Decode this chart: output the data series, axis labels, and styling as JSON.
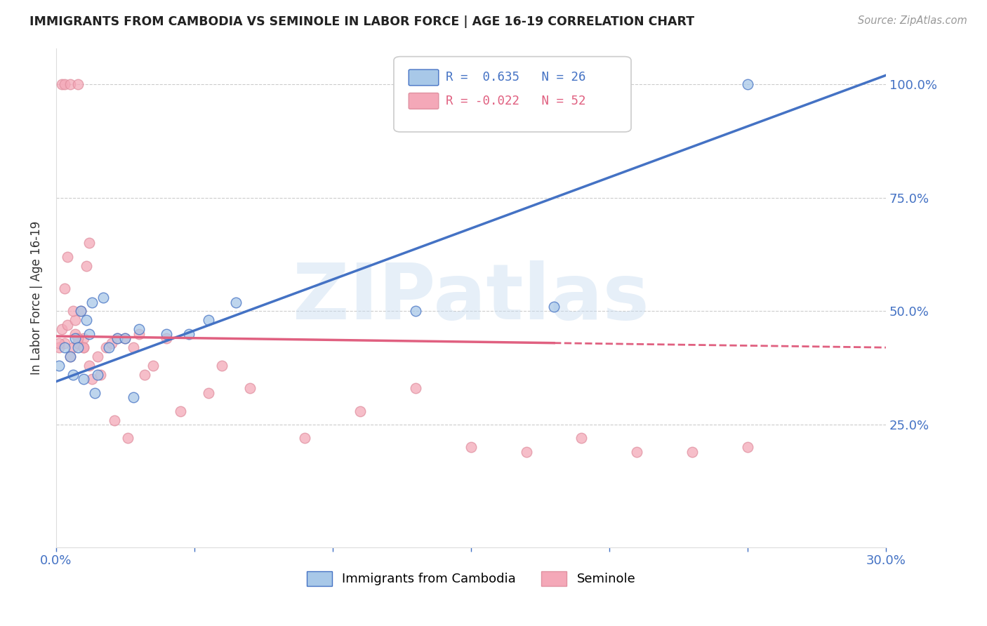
{
  "title": "IMMIGRANTS FROM CAMBODIA VS SEMINOLE IN LABOR FORCE | AGE 16-19 CORRELATION CHART",
  "source_text": "Source: ZipAtlas.com",
  "ylabel": "In Labor Force | Age 16-19",
  "xlim": [
    0.0,
    0.3
  ],
  "ylim": [
    -0.02,
    1.08
  ],
  "yticks": [
    0.0,
    0.25,
    0.5,
    0.75,
    1.0
  ],
  "ytick_labels": [
    "",
    "25.0%",
    "50.0%",
    "75.0%",
    "100.0%"
  ],
  "xticks": [
    0.0,
    0.05,
    0.1,
    0.15,
    0.2,
    0.25,
    0.3
  ],
  "xtick_labels": [
    "0.0%",
    "",
    "",
    "",
    "",
    "",
    "30.0%"
  ],
  "watermark": "ZIPatlas",
  "legend_r_cambodia": "0.635",
  "legend_n_cambodia": "26",
  "legend_r_seminole": "-0.022",
  "legend_n_seminole": "52",
  "color_cambodia": "#A8C8E8",
  "color_seminole": "#F4A8B8",
  "trendline_cambodia_color": "#4472C4",
  "trendline_seminole_color": "#E06080",
  "cambodia_x": [
    0.001,
    0.003,
    0.005,
    0.006,
    0.007,
    0.008,
    0.009,
    0.01,
    0.011,
    0.012,
    0.013,
    0.014,
    0.015,
    0.017,
    0.019,
    0.022,
    0.025,
    0.028,
    0.03,
    0.04,
    0.048,
    0.055,
    0.065,
    0.13,
    0.18,
    0.25
  ],
  "cambodia_y": [
    0.38,
    0.42,
    0.4,
    0.36,
    0.44,
    0.42,
    0.5,
    0.35,
    0.48,
    0.45,
    0.52,
    0.32,
    0.36,
    0.53,
    0.42,
    0.44,
    0.44,
    0.31,
    0.46,
    0.45,
    0.45,
    0.48,
    0.52,
    0.5,
    0.51,
    1.0
  ],
  "seminole_x": [
    0.001,
    0.002,
    0.002,
    0.003,
    0.003,
    0.004,
    0.005,
    0.005,
    0.006,
    0.007,
    0.007,
    0.008,
    0.008,
    0.009,
    0.01,
    0.01,
    0.011,
    0.012,
    0.013,
    0.015,
    0.018,
    0.02,
    0.022,
    0.025,
    0.028,
    0.03,
    0.032,
    0.035,
    0.04,
    0.045,
    0.055,
    0.06,
    0.07,
    0.09,
    0.11,
    0.13,
    0.15,
    0.17,
    0.19,
    0.21,
    0.23,
    0.25,
    0.001,
    0.003,
    0.004,
    0.006,
    0.008,
    0.01,
    0.012,
    0.016,
    0.021,
    0.026
  ],
  "seminole_y": [
    0.42,
    0.46,
    1.0,
    0.43,
    1.0,
    0.47,
    0.4,
    1.0,
    0.42,
    0.45,
    0.48,
    0.43,
    1.0,
    0.5,
    0.42,
    0.44,
    0.6,
    0.65,
    0.35,
    0.4,
    0.42,
    0.43,
    0.44,
    0.44,
    0.42,
    0.45,
    0.36,
    0.38,
    0.44,
    0.28,
    0.32,
    0.38,
    0.33,
    0.22,
    0.28,
    0.33,
    0.2,
    0.19,
    0.22,
    0.19,
    0.19,
    0.2,
    0.43,
    0.55,
    0.62,
    0.5,
    0.44,
    0.42,
    0.38,
    0.36,
    0.26,
    0.22
  ],
  "background_color": "#FFFFFF",
  "grid_color": "#CCCCCC",
  "trendline_cam_x0": 0.0,
  "trendline_cam_y0": 0.345,
  "trendline_cam_x1": 0.3,
  "trendline_cam_y1": 1.02,
  "trendline_sem_x0": 0.0,
  "trendline_sem_y0": 0.445,
  "trendline_sem_x1": 0.3,
  "trendline_sem_y1": 0.42,
  "trendline_sem_solid_end": 0.18
}
